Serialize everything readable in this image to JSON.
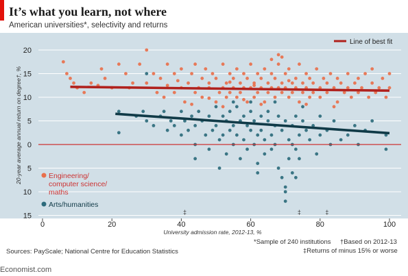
{
  "header": {
    "title": "It’s what you learn, not where",
    "subtitle": "American universities*, selectivity and returns"
  },
  "legend": {
    "best_fit": "Line of best fit",
    "engineering": [
      "Engineering/",
      "computer science/",
      "maths"
    ],
    "arts": "Arts/humanities"
  },
  "colors": {
    "panel": "#d1dfe7",
    "engineering": "#e8704c",
    "arts": "#2d6b7c",
    "eng_line": "#b0211d",
    "arts_line": "#103a47",
    "zero": "#c33"
  },
  "footer": {
    "sources": "Sources: PayScale; National Centre for Education Statistics",
    "note1": "*Sample of 240 institutions",
    "note2": "†Based on 2012-13",
    "note3": "‡Returns of minus 15% or worse",
    "logo": "Economist.com"
  },
  "chart_data": {
    "type": "scatter",
    "xlabel": "University admission rate, 2012-13, %",
    "ylabel": "20-year average annual return on degree†, %",
    "xlim": [
      -2,
      101
    ],
    "ylim": [
      -15,
      22
    ],
    "xticks": [
      0,
      20,
      40,
      60,
      80,
      100
    ],
    "yticks": [
      {
        "v": 20,
        "label": "20"
      },
      {
        "v": 15,
        "label": "15"
      },
      {
        "v": 10,
        "label": "10"
      },
      {
        "v": 5,
        "label": "5"
      },
      {
        "v": 0,
        "label": "0"
      },
      {
        "v": -5,
        "label": "5"
      },
      {
        "v": -10,
        "label": "10"
      },
      {
        "v": -15,
        "label": "15"
      }
    ],
    "outlier_markers": [
      {
        "x": 41,
        "label": "‡"
      },
      {
        "x": 74,
        "label": "‡"
      },
      {
        "x": 82,
        "label": "‡"
      }
    ],
    "series": [
      {
        "name": "Engineering/computer science/maths",
        "fit": [
          [
            8,
            12.2
          ],
          [
            100,
            11.4
          ]
        ],
        "points": [
          [
            6,
            17.5
          ],
          [
            7,
            15
          ],
          [
            8,
            14
          ],
          [
            9,
            13
          ],
          [
            10,
            12
          ],
          [
            12,
            11
          ],
          [
            14,
            13
          ],
          [
            16,
            12.5
          ],
          [
            17,
            16
          ],
          [
            18,
            14
          ],
          [
            20,
            12
          ],
          [
            22,
            17
          ],
          [
            24,
            15
          ],
          [
            25,
            12
          ],
          [
            26,
            13
          ],
          [
            28,
            17
          ],
          [
            30,
            20
          ],
          [
            30,
            13
          ],
          [
            32,
            15
          ],
          [
            33,
            11
          ],
          [
            34,
            14
          ],
          [
            35,
            10
          ],
          [
            36,
            12.5
          ],
          [
            38,
            15
          ],
          [
            38,
            11
          ],
          [
            40,
            16
          ],
          [
            40,
            12
          ],
          [
            41,
            9
          ],
          [
            42,
            13
          ],
          [
            43,
            15
          ],
          [
            44,
            17
          ],
          [
            44,
            11
          ],
          [
            45,
            12
          ],
          [
            46,
            14
          ],
          [
            46,
            10
          ],
          [
            47,
            16
          ],
          [
            48,
            12
          ],
          [
            48,
            13
          ],
          [
            49,
            15
          ],
          [
            50,
            9
          ],
          [
            50,
            14
          ],
          [
            51,
            11
          ],
          [
            52,
            17
          ],
          [
            52,
            12
          ],
          [
            53,
            13
          ],
          [
            53,
            10
          ],
          [
            54,
            15
          ],
          [
            54,
            11
          ],
          [
            55,
            14
          ],
          [
            55,
            12
          ],
          [
            56,
            16
          ],
          [
            56,
            10
          ],
          [
            57,
            13
          ],
          [
            57,
            11
          ],
          [
            58,
            15
          ],
          [
            58,
            12
          ],
          [
            59,
            14
          ],
          [
            59,
            9
          ],
          [
            60,
            17
          ],
          [
            60,
            12
          ],
          [
            61,
            13
          ],
          [
            61,
            10
          ],
          [
            62,
            15
          ],
          [
            62,
            11
          ],
          [
            63,
            14
          ],
          [
            63,
            12
          ],
          [
            64,
            16
          ],
          [
            64,
            9
          ],
          [
            65,
            13
          ],
          [
            65,
            11
          ],
          [
            66,
            15
          ],
          [
            66,
            12
          ],
          [
            67,
            14
          ],
          [
            67,
            10
          ],
          [
            68,
            17
          ],
          [
            68,
            12
          ],
          [
            69,
            13
          ],
          [
            69,
            11
          ],
          [
            70,
            15
          ],
          [
            70,
            12
          ],
          [
            71,
            16
          ],
          [
            71,
            10
          ],
          [
            72,
            13
          ],
          [
            72,
            11
          ],
          [
            73,
            14
          ],
          [
            73,
            12
          ],
          [
            74,
            17
          ],
          [
            74,
            9
          ],
          [
            75,
            13
          ],
          [
            75,
            11
          ],
          [
            76,
            15
          ],
          [
            76,
            12
          ],
          [
            77,
            14
          ],
          [
            77,
            10
          ],
          [
            78,
            13
          ],
          [
            78,
            11
          ],
          [
            79,
            16
          ],
          [
            80,
            12
          ],
          [
            80,
            10
          ],
          [
            81,
            14
          ],
          [
            82,
            13
          ],
          [
            82,
            11
          ],
          [
            83,
            15
          ],
          [
            84,
            12
          ],
          [
            85,
            9
          ],
          [
            85,
            14
          ],
          [
            86,
            13
          ],
          [
            87,
            11
          ],
          [
            88,
            15
          ],
          [
            88,
            12
          ],
          [
            89,
            10
          ],
          [
            90,
            13
          ],
          [
            91,
            14
          ],
          [
            91,
            11
          ],
          [
            92,
            12
          ],
          [
            93,
            15
          ],
          [
            94,
            10
          ],
          [
            95,
            13
          ],
          [
            95,
            16
          ],
          [
            96,
            11
          ],
          [
            97,
            12
          ],
          [
            98,
            14
          ],
          [
            99,
            10
          ],
          [
            100,
            15
          ],
          [
            100,
            12
          ],
          [
            69,
            18.5
          ],
          [
            68,
            19
          ],
          [
            66,
            18
          ],
          [
            36,
            17
          ],
          [
            43,
            8.5
          ],
          [
            52,
            8
          ],
          [
            76,
            8.5
          ],
          [
            84,
            8
          ],
          [
            63,
            8.5
          ],
          [
            58,
            9.5
          ],
          [
            48,
            9.8
          ],
          [
            39,
            13.5
          ],
          [
            54,
            13.2
          ],
          [
            61,
            12.5
          ],
          [
            71,
            13.5
          ]
        ]
      },
      {
        "name": "Arts/humanities",
        "fit": [
          [
            21,
            6.5
          ],
          [
            100,
            2.4
          ]
        ],
        "points": [
          [
            22,
            7
          ],
          [
            22,
            2.5
          ],
          [
            27,
            6
          ],
          [
            29,
            7
          ],
          [
            30,
            5
          ],
          [
            30,
            15
          ],
          [
            32,
            4
          ],
          [
            34,
            6
          ],
          [
            35,
            7
          ],
          [
            36,
            3
          ],
          [
            37,
            5
          ],
          [
            38,
            4
          ],
          [
            40,
            7
          ],
          [
            40,
            2
          ],
          [
            41,
            5
          ],
          [
            42,
            3
          ],
          [
            43,
            6
          ],
          [
            44,
            0
          ],
          [
            44,
            4
          ],
          [
            44,
            -3
          ],
          [
            45,
            7
          ],
          [
            46,
            5
          ],
          [
            47,
            2
          ],
          [
            48,
            6
          ],
          [
            48,
            -1
          ],
          [
            49,
            3
          ],
          [
            50,
            8
          ],
          [
            50,
            4
          ],
          [
            51,
            1
          ],
          [
            51,
            -5
          ],
          [
            52,
            6
          ],
          [
            52,
            2
          ],
          [
            53,
            5
          ],
          [
            53,
            -2
          ],
          [
            54,
            7
          ],
          [
            54,
            3
          ],
          [
            55,
            0
          ],
          [
            55,
            4
          ],
          [
            56,
            8
          ],
          [
            56,
            2
          ],
          [
            57,
            5
          ],
          [
            57,
            -3
          ],
          [
            58,
            6
          ],
          [
            58,
            1
          ],
          [
            59,
            4
          ],
          [
            59,
            -1
          ],
          [
            60,
            7
          ],
          [
            60,
            3
          ],
          [
            61,
            0
          ],
          [
            61,
            5
          ],
          [
            62,
            2
          ],
          [
            62,
            -4
          ],
          [
            63,
            6
          ],
          [
            63,
            3
          ],
          [
            64,
            1
          ],
          [
            64,
            -2
          ],
          [
            65,
            5
          ],
          [
            65,
            7
          ],
          [
            66,
            2
          ],
          [
            66,
            -1
          ],
          [
            67,
            4
          ],
          [
            67,
            0
          ],
          [
            68,
            6
          ],
          [
            68,
            -5
          ],
          [
            69,
            3
          ],
          [
            69,
            -7
          ],
          [
            70,
            5
          ],
          [
            70,
            -9
          ],
          [
            70,
            -12
          ],
          [
            71,
            1
          ],
          [
            71,
            -3
          ],
          [
            72,
            4
          ],
          [
            72,
            0
          ],
          [
            73,
            -1
          ],
          [
            73,
            6
          ],
          [
            74,
            2
          ],
          [
            74,
            -3
          ],
          [
            75,
            5
          ],
          [
            75,
            8
          ],
          [
            76,
            3
          ],
          [
            77,
            1
          ],
          [
            78,
            4
          ],
          [
            79,
            -2
          ],
          [
            80,
            2
          ],
          [
            80,
            6
          ],
          [
            82,
            3
          ],
          [
            83,
            0
          ],
          [
            84,
            5
          ],
          [
            86,
            1
          ],
          [
            88,
            2
          ],
          [
            90,
            4
          ],
          [
            91,
            0
          ],
          [
            93,
            3
          ],
          [
            95,
            5
          ],
          [
            99,
            -1
          ],
          [
            99,
            2
          ],
          [
            67,
            9
          ],
          [
            60,
            9
          ],
          [
            55,
            9
          ],
          [
            62,
            -6
          ],
          [
            73,
            -7
          ],
          [
            72,
            -6
          ],
          [
            70,
            -10
          ]
        ]
      }
    ]
  }
}
